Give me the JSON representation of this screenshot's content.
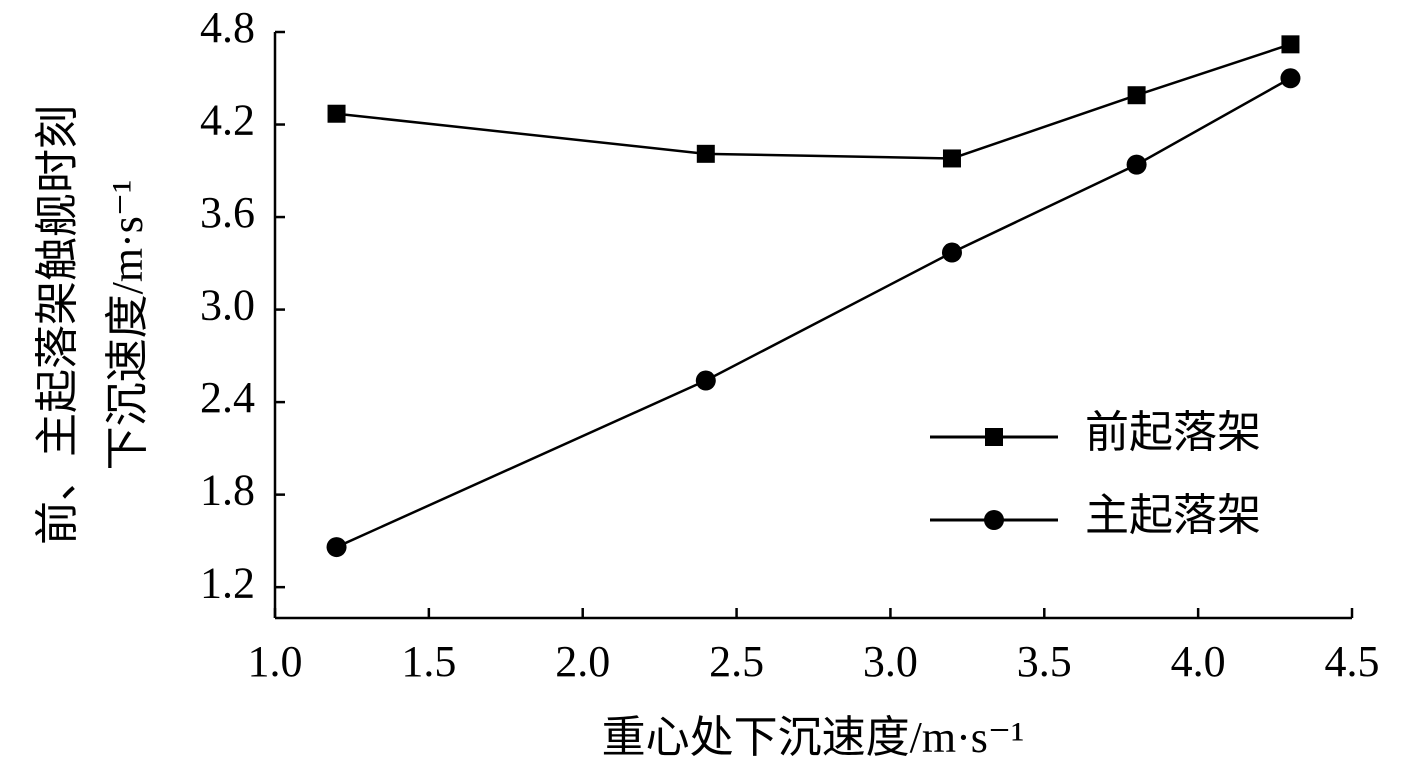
{
  "chart_data": {
    "type": "line",
    "x_label": "重心处下沉速度/m·s⁻¹",
    "y_label": [
      "前、主起落架触舰时刻",
      "下沉速度/m·s⁻¹"
    ],
    "x": [
      1.2,
      2.4,
      3.2,
      3.8,
      4.3
    ],
    "series": [
      {
        "name": "前起落架",
        "color": "#000000",
        "marker": "square",
        "values": [
          4.27,
          4.01,
          3.98,
          4.39,
          4.72
        ]
      },
      {
        "name": "主起落架",
        "color": "#000000",
        "marker": "circle",
        "values": [
          1.46,
          2.54,
          3.37,
          3.94,
          4.5
        ]
      }
    ],
    "xlim": [
      1.0,
      4.5
    ],
    "xticks": [
      {
        "value": 1.0,
        "label": "1.0"
      },
      1.5,
      {
        "value": 2.0,
        "label": "2.0"
      },
      2.5,
      {
        "value": 3.0,
        "label": "3.0"
      },
      3.5,
      {
        "value": 4.0,
        "label": "4.0"
      },
      4.5
    ],
    "ylim": [
      1.0,
      4.8
    ],
    "yticks": [
      1.2,
      1.8,
      2.4,
      {
        "value": 3.0,
        "label": "3.0"
      },
      3.6,
      4.2,
      4.8
    ],
    "grid": false,
    "legend": "right"
  }
}
